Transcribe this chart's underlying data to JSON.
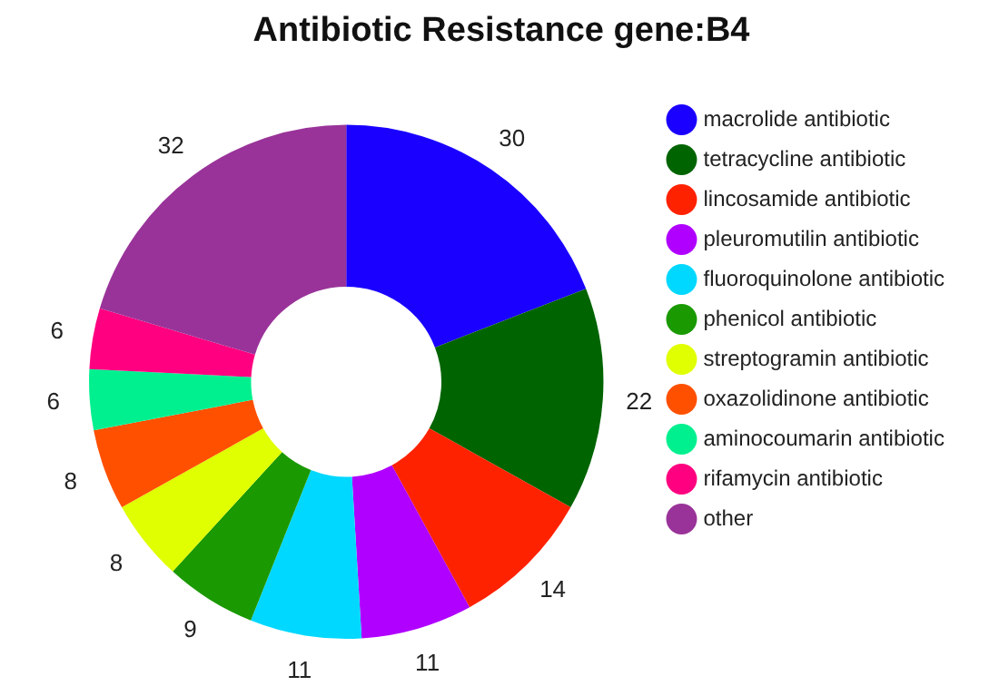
{
  "chart_data": {
    "type": "donut",
    "title": "Antibiotic Resistance gene:B4",
    "categories": [
      "macrolide antibiotic",
      "tetracycline antibiotic",
      "lincosamide antibiotic",
      "pleuromutilin antibiotic",
      "fluoroquinolone antibiotic",
      "phenicol antibiotic",
      "streptogramin antibiotic",
      "oxazolidinone antibiotic",
      "aminocoumarin antibiotic",
      "rifamycin antibiotic",
      "other"
    ],
    "values": [
      30,
      22,
      14,
      11,
      11,
      9,
      8,
      8,
      6,
      6,
      32
    ],
    "colors": [
      "#1a00ff",
      "#006400",
      "#ff2200",
      "#b000ff",
      "#00d8ff",
      "#1a9900",
      "#e0ff00",
      "#ff5000",
      "#00f090",
      "#ff0080",
      "#993399"
    ],
    "data_labels": true,
    "legend": "right"
  }
}
